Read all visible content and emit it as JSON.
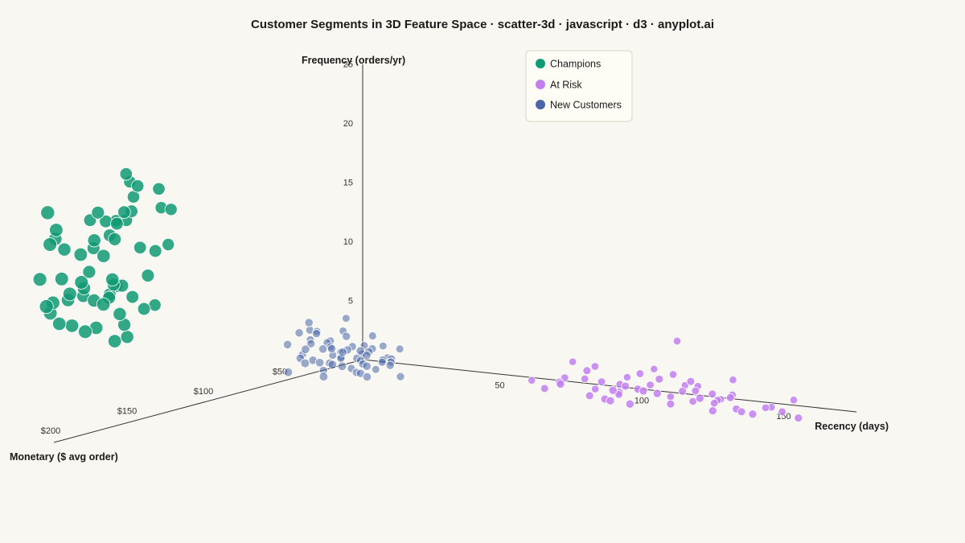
{
  "chart_data": {
    "type": "scatter",
    "title": "Customer Segments in 3D Feature Space · scatter-3d · javascript · d3 · anyplot.ai",
    "axes": {
      "x": {
        "label": "Recency (days)",
        "ticks": [
          "50",
          "100",
          "150"
        ],
        "tick_values": [
          50,
          100,
          150
        ]
      },
      "y": {
        "label": "Monetary ($ avg order)",
        "ticks": [
          "$50",
          "$100",
          "$150",
          "$200"
        ],
        "tick_values": [
          50,
          100,
          150,
          200
        ]
      },
      "z": {
        "label": "Frequency (orders/yr)",
        "ticks": [
          "5",
          "10",
          "15",
          "20",
          "25"
        ],
        "tick_values": [
          5,
          10,
          15,
          20,
          25
        ]
      }
    },
    "legend_position": "top-right",
    "grid": false,
    "colors": {
      "Champions": "#109a73",
      "At Risk": "#c37ff0",
      "New Customers": "#4a67a8"
    },
    "series": [
      {
        "name": "Champions",
        "points": [
          [
            4,
            208,
            18
          ],
          [
            9,
            190,
            19
          ],
          [
            13,
            185,
            18
          ],
          [
            16,
            192,
            17
          ],
          [
            7,
            220,
            12
          ],
          [
            11,
            186,
            12
          ],
          [
            21,
            195,
            10
          ],
          [
            5,
            170,
            12
          ],
          [
            19,
            186,
            12
          ],
          [
            2,
            215,
            14
          ],
          [
            14,
            176,
            20
          ],
          [
            23,
            170,
            16
          ],
          [
            18,
            203,
            16
          ],
          [
            24,
            178,
            21
          ],
          [
            8,
            221,
            20
          ],
          [
            12,
            198,
            17
          ],
          [
            20,
            201,
            14
          ],
          [
            6,
            204,
            12
          ],
          [
            10,
            201,
            13
          ],
          [
            15,
            212,
            14
          ],
          [
            22,
            195,
            9
          ],
          [
            17,
            206,
            10
          ],
          [
            3,
            184,
            18
          ],
          [
            25,
            187,
            14
          ],
          [
            1,
            203,
            17
          ],
          [
            13,
            179,
            22
          ],
          [
            7,
            210,
            14
          ],
          [
            16,
            181,
            19
          ],
          [
            10,
            171,
            21
          ],
          [
            19,
            181,
            16
          ],
          [
            5,
            212,
            12
          ],
          [
            12,
            177,
            18
          ],
          [
            21,
            175,
            11
          ],
          [
            8,
            183,
            18
          ],
          [
            14,
            192,
            12
          ],
          [
            24,
            170,
            19
          ],
          [
            11,
            186,
            17
          ],
          [
            18,
            215,
            10
          ],
          [
            6,
            194,
            12
          ],
          [
            22,
            184,
            11
          ],
          [
            3,
            210,
            11
          ],
          [
            17,
            189,
            13
          ],
          [
            9,
            207,
            10
          ],
          [
            15,
            184,
            19
          ],
          [
            2,
            199,
            16
          ],
          [
            20,
            169,
            19
          ],
          [
            13,
            200,
            12
          ],
          [
            7,
            192,
            14
          ],
          [
            23,
            205,
            9
          ],
          [
            10,
            180,
            18
          ],
          [
            26,
            184,
            16
          ],
          [
            4,
            206,
            10
          ],
          [
            16,
            177,
            21
          ],
          [
            12,
            214,
            13
          ],
          [
            19,
            205,
            12
          ],
          [
            8,
            191,
            16
          ],
          [
            14,
            189,
            13
          ],
          [
            21,
            198,
            11
          ],
          [
            11,
            205,
            16
          ],
          [
            5,
            214,
            17
          ]
        ]
      },
      {
        "name": "At Risk",
        "points": [
          [
            113,
            38,
            2
          ],
          [
            98,
            30,
            3
          ],
          [
            130,
            40,
            1
          ],
          [
            142,
            35,
            2
          ],
          [
            157,
            28,
            1
          ],
          [
            105,
            22,
            2
          ],
          [
            120,
            48,
            1
          ],
          [
            135,
            33,
            2
          ],
          [
            88,
            26,
            3
          ],
          [
            147,
            44,
            1
          ],
          [
            110,
            36,
            2
          ],
          [
            125,
            29,
            3
          ],
          [
            160,
            42,
            1
          ],
          [
            95,
            47,
            2
          ],
          [
            138,
            24,
            1
          ],
          [
            118,
            31,
            2
          ],
          [
            102,
            41,
            1
          ],
          [
            150,
            38,
            2
          ],
          [
            84,
            37,
            1
          ],
          [
            128,
            45,
            2
          ],
          [
            145,
            27,
            3
          ],
          [
            108,
            33,
            1
          ],
          [
            132,
            36,
            2
          ],
          [
            97,
            28,
            1
          ],
          [
            155,
            40,
            1
          ],
          [
            115,
            23,
            3
          ],
          [
            122,
            43,
            2
          ],
          [
            140,
            30,
            1
          ],
          [
            90,
            35,
            2
          ],
          [
            165,
            32,
            1
          ],
          [
            100,
            39,
            3
          ],
          [
            127,
            25,
            2
          ],
          [
            112,
            46,
            1
          ],
          [
            136,
            38,
            3
          ],
          [
            148,
            33,
            2
          ],
          [
            106,
            29,
            1
          ],
          [
            119,
            41,
            2
          ],
          [
            158,
            26,
            1
          ],
          [
            93,
            44,
            2
          ],
          [
            133,
            31,
            1
          ],
          [
            73,
            25,
            1
          ],
          [
            103,
            35,
            2
          ],
          [
            123,
            27,
            1
          ],
          [
            143,
            45,
            2
          ],
          [
            116,
            34,
            3
          ],
          [
            128,
            32,
            6
          ],
          [
            175,
            40,
            1
          ],
          [
            168,
            30,
            2
          ],
          [
            109,
            44,
            1
          ],
          [
            138,
            22,
            1
          ],
          [
            96,
            33,
            2
          ],
          [
            151,
            36,
            1
          ],
          [
            114,
            48,
            2
          ],
          [
            126,
            40,
            3
          ],
          [
            131,
            24,
            2
          ]
        ]
      },
      {
        "name": "New Customers",
        "points": [
          [
            3,
            45,
            2
          ],
          [
            6,
            52,
            2
          ],
          [
            9,
            40,
            3
          ],
          [
            12,
            48,
            1
          ],
          [
            15,
            42,
            2
          ],
          [
            18,
            55,
            2
          ],
          [
            21,
            38,
            3
          ],
          [
            24,
            46,
            1
          ],
          [
            27,
            50,
            2
          ],
          [
            30,
            43,
            2
          ],
          [
            5,
            58,
            1
          ],
          [
            8,
            36,
            3
          ],
          [
            11,
            53,
            2
          ],
          [
            14,
            47,
            3
          ],
          [
            17,
            39,
            1
          ],
          [
            20,
            57,
            2
          ],
          [
            23,
            44,
            2
          ],
          [
            26,
            35,
            3
          ],
          [
            29,
            51,
            1
          ],
          [
            32,
            41,
            2
          ],
          [
            4,
            49,
            4
          ],
          [
            7,
            43,
            4
          ],
          [
            10,
            56,
            3
          ],
          [
            13,
            37,
            4
          ],
          [
            16,
            50,
            3
          ],
          [
            19,
            46,
            4
          ],
          [
            22,
            54,
            3
          ],
          [
            25,
            40,
            4
          ],
          [
            28,
            48,
            3
          ],
          [
            31,
            55,
            3
          ],
          [
            2,
            38,
            3
          ],
          [
            12,
            60,
            2
          ],
          [
            17,
            32,
            2
          ],
          [
            22,
            45,
            1
          ],
          [
            27,
            34,
            2
          ],
          [
            9,
            47,
            4
          ],
          [
            14,
            52,
            3
          ],
          [
            19,
            42,
            3
          ],
          [
            24,
            58,
            2
          ],
          [
            33,
            37,
            3
          ],
          [
            6,
            45,
            3
          ],
          [
            11,
            40,
            2
          ],
          [
            16,
            44,
            2
          ],
          [
            21,
            49,
            3
          ],
          [
            26,
            42,
            3
          ],
          [
            35,
            47,
            2
          ],
          [
            1,
            51,
            3
          ],
          [
            13,
            35,
            5
          ],
          [
            18,
            59,
            1
          ],
          [
            28,
            39,
            2
          ],
          [
            4,
            42,
            4
          ],
          [
            15,
            56,
            2
          ],
          [
            24,
            36,
            1
          ],
          [
            30,
            53,
            2
          ],
          [
            8,
            50,
            5
          ],
          [
            20,
            41,
            2
          ],
          [
            10,
            33,
            2
          ],
          [
            25,
            48,
            3
          ],
          [
            37,
            44,
            1
          ],
          [
            29,
            35,
            2
          ]
        ]
      }
    ]
  }
}
